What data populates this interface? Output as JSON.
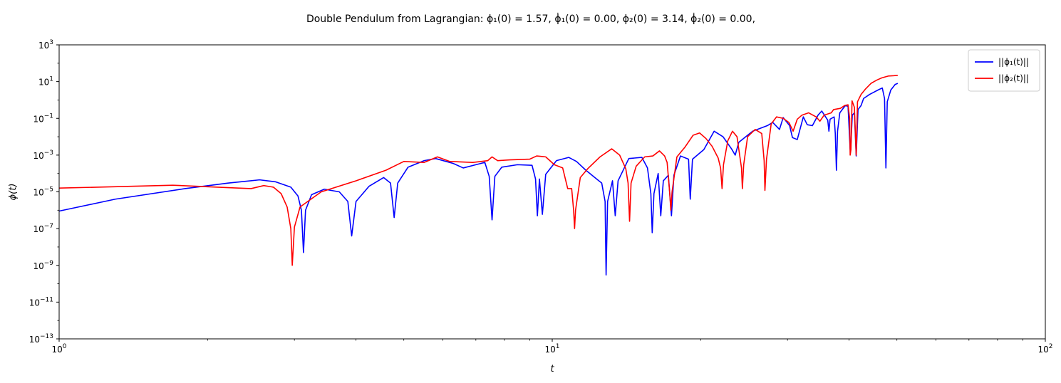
{
  "chart_data": {
    "type": "line",
    "title": "Double Pendulum from Lagrangian:   ϕ₁(0) = 1.57,  ϕ̇₁(0) = 0.00,   ϕ₂(0) = 3.14,  ϕ̇₂(0) = 0.00,",
    "xlabel": "t",
    "ylabel": "ϕ(t)",
    "xscale": "log",
    "yscale": "log",
    "xlim": [
      1,
      100
    ],
    "ylim": [
      1e-13,
      1000
    ],
    "x_ticks": [
      {
        "value": 1,
        "base": "10",
        "exp": "0"
      },
      {
        "value": 10,
        "base": "10",
        "exp": "1"
      },
      {
        "value": 100,
        "base": "10",
        "exp": "2"
      }
    ],
    "y_ticks": [
      {
        "value": 1000,
        "base": "10",
        "exp": "3"
      },
      {
        "value": 10,
        "base": "10",
        "exp": "1"
      },
      {
        "value": 0.1,
        "base": "10",
        "exp": "−1"
      },
      {
        "value": 0.001,
        "base": "10",
        "exp": "−3"
      },
      {
        "value": 1e-05,
        "base": "10",
        "exp": "−5"
      },
      {
        "value": 1e-07,
        "base": "10",
        "exp": "−7"
      },
      {
        "value": 1e-09,
        "base": "10",
        "exp": "−9"
      },
      {
        "value": 1e-11,
        "base": "10",
        "exp": "−11"
      },
      {
        "value": 1e-13,
        "base": "10",
        "exp": "−13"
      }
    ],
    "grid": false,
    "legend_position": "top-right",
    "series": [
      {
        "name": "||ϕ₁(t)||",
        "color": "#0000ff",
        "points": [
          [
            1.0,
            9e-07
          ],
          [
            1.3,
            4e-06
          ],
          [
            1.8,
            1.5e-05
          ],
          [
            2.2,
            3e-05
          ],
          [
            2.55,
            4.5e-05
          ],
          [
            2.75,
            3.5e-05
          ],
          [
            2.95,
            1.8e-05
          ],
          [
            3.05,
            6e-06
          ],
          [
            3.1,
            1e-06
          ],
          [
            3.13,
            5e-09
          ],
          [
            3.16,
            1e-06
          ],
          [
            3.25,
            7e-06
          ],
          [
            3.45,
            1.4e-05
          ],
          [
            3.7,
            1e-05
          ],
          [
            3.85,
            3e-06
          ],
          [
            3.92,
            4e-08
          ],
          [
            4.0,
            3e-06
          ],
          [
            4.25,
            2e-05
          ],
          [
            4.55,
            6e-05
          ],
          [
            4.7,
            3e-05
          ],
          [
            4.78,
            4e-07
          ],
          [
            4.86,
            3e-05
          ],
          [
            5.1,
            0.00022
          ],
          [
            5.5,
            0.0005
          ],
          [
            5.8,
            0.00065
          ],
          [
            6.3,
            0.00035
          ],
          [
            6.6,
            0.0002
          ],
          [
            7.0,
            0.0003
          ],
          [
            7.3,
            0.0004
          ],
          [
            7.45,
            7e-05
          ],
          [
            7.55,
            3e-07
          ],
          [
            7.65,
            7e-05
          ],
          [
            7.9,
            0.00022
          ],
          [
            8.5,
            0.0003
          ],
          [
            9.1,
            0.00028
          ],
          [
            9.25,
            5e-05
          ],
          [
            9.33,
            5e-07
          ],
          [
            9.42,
            5e-05
          ],
          [
            9.55,
            6e-07
          ],
          [
            9.7,
            9e-05
          ],
          [
            10.2,
            0.0005
          ],
          [
            10.8,
            0.00075
          ],
          [
            11.2,
            0.00045
          ],
          [
            11.7,
            0.00015
          ],
          [
            12.2,
            6e-05
          ],
          [
            12.6,
            3e-05
          ],
          [
            12.8,
            3e-06
          ],
          [
            12.86,
            3e-10
          ],
          [
            12.95,
            3e-06
          ],
          [
            13.25,
            4e-05
          ],
          [
            13.42,
            5e-07
          ],
          [
            13.6,
            4e-05
          ],
          [
            14.3,
            0.00065
          ],
          [
            15.2,
            0.00075
          ],
          [
            15.6,
            0.0002
          ],
          [
            15.85,
            8e-06
          ],
          [
            15.95,
            6e-08
          ],
          [
            16.08,
            8e-06
          ],
          [
            16.4,
            0.0001
          ],
          [
            16.6,
            5e-07
          ],
          [
            16.8,
            4e-05
          ],
          [
            17.2,
            8e-05
          ],
          [
            17.45,
            5e-07
          ],
          [
            17.65,
            8e-05
          ],
          [
            18.2,
            0.0009
          ],
          [
            18.9,
            0.0006
          ],
          [
            19.05,
            4e-06
          ],
          [
            19.25,
            0.0006
          ],
          [
            20.3,
            0.002
          ],
          [
            21.3,
            0.02
          ],
          [
            22.2,
            0.01
          ],
          [
            23.1,
            0.0022
          ],
          [
            23.5,
            0.001
          ],
          [
            23.9,
            0.005
          ],
          [
            25.5,
            0.02
          ],
          [
            27.3,
            0.04
          ],
          [
            28.0,
            0.06
          ],
          [
            28.9,
            0.025
          ],
          [
            29.4,
            0.11
          ],
          [
            30.3,
            0.04
          ],
          [
            30.7,
            0.009
          ],
          [
            31.4,
            0.007
          ],
          [
            32.3,
            0.12
          ],
          [
            32.9,
            0.045
          ],
          [
            33.7,
            0.04
          ],
          [
            34.6,
            0.15
          ],
          [
            35.2,
            0.25
          ],
          [
            36.2,
            0.08
          ],
          [
            36.4,
            0.02
          ],
          [
            36.6,
            0.09
          ],
          [
            37.3,
            0.12
          ],
          [
            37.5,
            0.015
          ],
          [
            37.7,
            0.00015
          ],
          [
            37.9,
            0.02
          ],
          [
            38.3,
            0.2
          ],
          [
            39.3,
            0.5
          ],
          [
            39.8,
            0.45
          ],
          [
            40.2,
            0.002
          ],
          [
            40.3,
            0.002
          ],
          [
            40.6,
            0.15
          ],
          [
            41.0,
            0.2
          ],
          [
            41.35,
            0.0009
          ],
          [
            41.7,
            0.3
          ],
          [
            42.3,
            0.5
          ],
          [
            42.8,
            1.2
          ],
          [
            44.0,
            2.0
          ],
          [
            45.8,
            3.5
          ],
          [
            46.7,
            4.5
          ],
          [
            47.2,
            1.2
          ],
          [
            47.5,
            0.0002
          ],
          [
            47.8,
            0.8
          ],
          [
            48.6,
            3.5
          ],
          [
            49.6,
            7.0
          ],
          [
            50.2,
            8.0
          ]
        ]
      },
      {
        "name": "||ϕ₂(t)||",
        "color": "#ff0000",
        "points": [
          [
            1.0,
            1.6e-05
          ],
          [
            1.4,
            2e-05
          ],
          [
            1.7,
            2.3e-05
          ],
          [
            2.2,
            1.7e-05
          ],
          [
            2.45,
            1.5e-05
          ],
          [
            2.6,
            2.2e-05
          ],
          [
            2.72,
            1.8e-05
          ],
          [
            2.82,
            8e-06
          ],
          [
            2.9,
            1.5e-06
          ],
          [
            2.95,
            1e-07
          ],
          [
            2.97,
            1e-09
          ],
          [
            3.0,
            1.2e-07
          ],
          [
            3.08,
            1.5e-06
          ],
          [
            3.4,
            1e-05
          ],
          [
            4.0,
            4e-05
          ],
          [
            4.6,
            0.00015
          ],
          [
            5.0,
            0.00045
          ],
          [
            5.5,
            0.0004
          ],
          [
            5.85,
            0.0008
          ],
          [
            6.2,
            0.00045
          ],
          [
            6.9,
            0.0004
          ],
          [
            7.4,
            0.0005
          ],
          [
            7.55,
            0.0008
          ],
          [
            7.75,
            0.0005
          ],
          [
            8.2,
            0.00055
          ],
          [
            9.0,
            0.0006
          ],
          [
            9.3,
            0.0009
          ],
          [
            9.7,
            0.0008
          ],
          [
            10.1,
            0.0003
          ],
          [
            10.5,
            0.0002
          ],
          [
            10.75,
            1.5e-05
          ],
          [
            10.95,
            1.5e-05
          ],
          [
            11.05,
            1e-06
          ],
          [
            11.1,
            1e-07
          ],
          [
            11.15,
            1e-06
          ],
          [
            11.4,
            6e-05
          ],
          [
            11.8,
            0.00018
          ],
          [
            12.5,
            0.0008
          ],
          [
            13.2,
            0.0022
          ],
          [
            13.7,
            0.001
          ],
          [
            14.1,
            0.00018
          ],
          [
            14.25,
            3e-05
          ],
          [
            14.35,
            2.5e-07
          ],
          [
            14.45,
            3e-05
          ],
          [
            14.8,
            0.00025
          ],
          [
            15.4,
            0.0008
          ],
          [
            16.0,
            0.0009
          ],
          [
            16.5,
            0.0017
          ],
          [
            16.9,
            0.0009
          ],
          [
            17.1,
            0.0004
          ],
          [
            17.3,
            1e-05
          ],
          [
            17.4,
            1e-06
          ],
          [
            17.5,
            1e-05
          ],
          [
            17.9,
            0.0008
          ],
          [
            18.6,
            0.0028
          ],
          [
            19.3,
            0.012
          ],
          [
            19.9,
            0.016
          ],
          [
            20.5,
            0.008
          ],
          [
            21.1,
            0.003
          ],
          [
            21.7,
            0.0007
          ],
          [
            21.95,
            0.0002
          ],
          [
            22.1,
            1.5e-05
          ],
          [
            22.25,
            0.0003
          ],
          [
            22.7,
            0.006
          ],
          [
            23.2,
            0.02
          ],
          [
            23.7,
            0.01
          ],
          [
            24.2,
            0.0002
          ],
          [
            24.3,
            1.5e-05
          ],
          [
            24.45,
            0.0003
          ],
          [
            24.9,
            0.01
          ],
          [
            25.8,
            0.025
          ],
          [
            26.6,
            0.015
          ],
          [
            26.9,
            0.0005
          ],
          [
            27.0,
            1.2e-05
          ],
          [
            27.2,
            0.0006
          ],
          [
            27.8,
            0.05
          ],
          [
            28.5,
            0.12
          ],
          [
            29.4,
            0.1
          ],
          [
            30.2,
            0.06
          ],
          [
            30.8,
            0.02
          ],
          [
            31.4,
            0.09
          ],
          [
            32.1,
            0.15
          ],
          [
            33.1,
            0.2
          ],
          [
            34.3,
            0.12
          ],
          [
            34.9,
            0.07
          ],
          [
            35.6,
            0.15
          ],
          [
            36.8,
            0.2
          ],
          [
            37.2,
            0.3
          ],
          [
            38.4,
            0.35
          ],
          [
            39.2,
            0.5
          ],
          [
            39.8,
            0.55
          ],
          [
            40.1,
            0.1
          ],
          [
            40.2,
            0.001
          ],
          [
            40.35,
            0.002
          ],
          [
            40.55,
            0.9
          ],
          [
            41.0,
            0.4
          ],
          [
            41.35,
            0.001
          ],
          [
            41.6,
            0.8
          ],
          [
            42.3,
            2.0
          ],
          [
            43.2,
            4.0
          ],
          [
            44.3,
            8.0
          ],
          [
            45.5,
            12.0
          ],
          [
            46.6,
            16.0
          ],
          [
            48.0,
            20.0
          ],
          [
            49.3,
            21.0
          ],
          [
            50.2,
            22.0
          ]
        ]
      }
    ]
  }
}
